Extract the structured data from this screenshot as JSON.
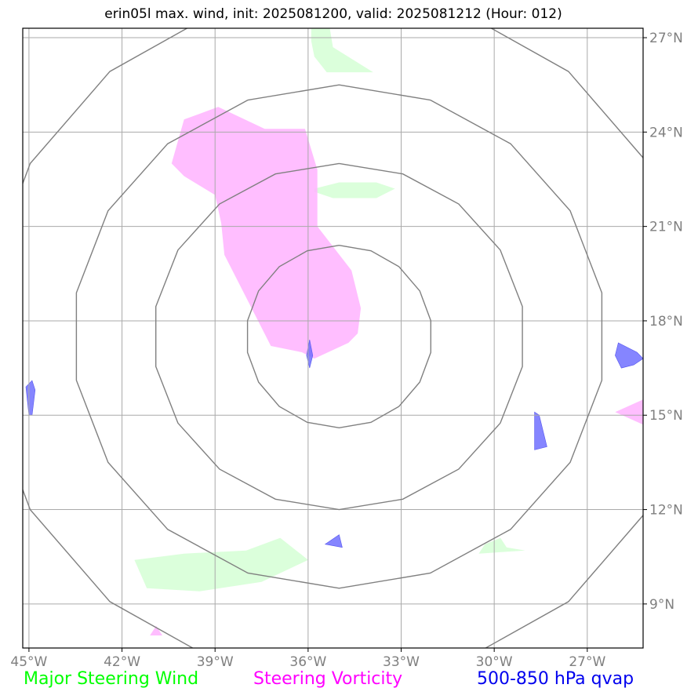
{
  "title": "erin05l max. wind, init: 2025081200, valid: 2025081212 (Hour: 012)",
  "axes": {
    "x_ticks": [
      "45°W",
      "42°W",
      "39°W",
      "36°W",
      "33°W",
      "30°W",
      "27°W"
    ],
    "y_ticks": [
      "27°N",
      "24°N",
      "21°N",
      "18°N",
      "15°N",
      "12°N",
      "9°N"
    ],
    "lon_range": [
      -45.2,
      -25.2
    ],
    "lat_range": [
      7.6,
      27.3
    ]
  },
  "legend": {
    "wind": "Major Steering Wind",
    "vorticity": "Steering Vorticity",
    "qvap": "500-850 hPa qvap"
  },
  "colors": {
    "wind": "#ccffcc",
    "vorticity": "#ffb3ff",
    "qvap": "#6666ff",
    "grid": "#aaaaaa",
    "rings": "#808080"
  },
  "storm_center": {
    "lon": -35.0,
    "lat": 17.5
  },
  "range_rings": [
    {
      "lon_radius": 3.0,
      "lat_radius": 2.9
    },
    {
      "lon_radius": 6.0,
      "lat_radius": 5.5
    },
    {
      "lon_radius": 8.6,
      "lat_radius": 8.0
    },
    {
      "lon_radius": 11.5,
      "lat_radius": 11.0
    }
  ],
  "features": {
    "wind": [
      [
        [
          -35.9,
          27.3
        ],
        [
          -35.3,
          27.3
        ],
        [
          -35.2,
          26.7
        ],
        [
          -33.9,
          25.9
        ],
        [
          -35.4,
          25.9
        ],
        [
          -35.8,
          26.4
        ],
        [
          -35.9,
          26.9
        ]
      ],
      [
        [
          -35.8,
          22.2
        ],
        [
          -35.0,
          22.4
        ],
        [
          -33.8,
          22.4
        ],
        [
          -33.2,
          22.2
        ],
        [
          -33.8,
          21.9
        ],
        [
          -35.2,
          21.9
        ],
        [
          -35.8,
          22.1
        ]
      ],
      [
        [
          -41.6,
          10.4
        ],
        [
          -40.0,
          10.6
        ],
        [
          -38.0,
          10.7
        ],
        [
          -36.9,
          11.1
        ],
        [
          -36.0,
          10.4
        ],
        [
          -37.5,
          9.7
        ],
        [
          -39.5,
          9.4
        ],
        [
          -41.2,
          9.5
        ]
      ],
      [
        [
          -30.3,
          10.9
        ],
        [
          -29.8,
          11.1
        ],
        [
          -29.6,
          10.8
        ],
        [
          -29.0,
          10.7
        ],
        [
          -30.5,
          10.6
        ]
      ]
    ],
    "vorticity": [
      [
        [
          -40.0,
          24.4
        ],
        [
          -38.9,
          24.8
        ],
        [
          -37.4,
          24.1
        ],
        [
          -36.1,
          24.1
        ],
        [
          -35.7,
          22.8
        ],
        [
          -35.7,
          21.0
        ],
        [
          -34.6,
          19.6
        ],
        [
          -34.3,
          18.4
        ],
        [
          -34.4,
          17.6
        ],
        [
          -34.7,
          17.3
        ],
        [
          -35.8,
          16.8
        ],
        [
          -36.2,
          17.0
        ],
        [
          -37.2,
          17.2
        ],
        [
          -38.7,
          20.1
        ],
        [
          -38.8,
          21.1
        ],
        [
          -39.0,
          22.0
        ],
        [
          -40.0,
          22.6
        ],
        [
          -40.4,
          23.0
        ]
      ],
      [
        [
          -41.1,
          8.0
        ],
        [
          -40.9,
          8.3
        ],
        [
          -40.7,
          8.0
        ]
      ],
      [
        [
          -26.1,
          15.1
        ],
        [
          -25.2,
          15.5
        ],
        [
          -25.2,
          14.7
        ]
      ]
    ],
    "qvap": [
      [
        [
          -36.05,
          16.9
        ],
        [
          -35.95,
          17.4
        ],
        [
          -35.85,
          16.9
        ],
        [
          -35.95,
          16.5
        ]
      ],
      [
        [
          -45.1,
          15.9
        ],
        [
          -44.9,
          16.1
        ],
        [
          -44.8,
          15.8
        ],
        [
          -44.9,
          15.0
        ],
        [
          -45.0,
          15.0
        ]
      ],
      [
        [
          -28.7,
          15.1
        ],
        [
          -28.55,
          15.0
        ],
        [
          -28.3,
          14.0
        ],
        [
          -28.7,
          13.9
        ]
      ],
      [
        [
          -35.45,
          10.9
        ],
        [
          -35.0,
          11.2
        ],
        [
          -34.9,
          10.8
        ]
      ],
      [
        [
          -26.0,
          17.3
        ],
        [
          -25.4,
          17.0
        ],
        [
          -25.2,
          16.8
        ],
        [
          -25.5,
          16.6
        ],
        [
          -25.9,
          16.5
        ],
        [
          -26.1,
          16.9
        ]
      ]
    ]
  }
}
